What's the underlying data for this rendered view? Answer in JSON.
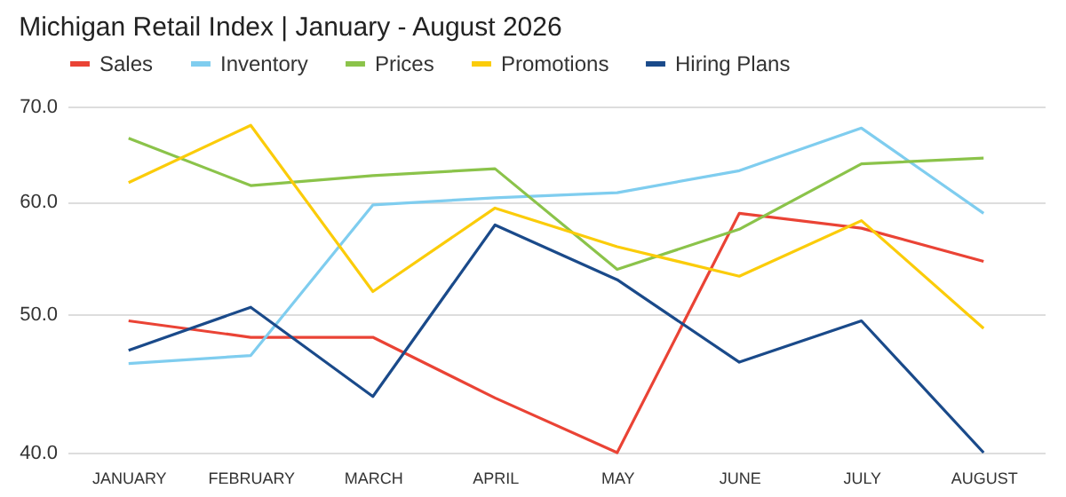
{
  "chart_data": {
    "type": "line",
    "title": "Michigan Retail Index | January - August 2026",
    "categories": [
      "JANUARY",
      "FEBRUARY",
      "MARCH",
      "APRIL",
      "MAY",
      "JUNE",
      "JULY",
      "AUGUST"
    ],
    "series": [
      {
        "name": "Sales",
        "color": "#ea4335",
        "values": [
          49.5,
          48.2,
          48.2,
          43.7,
          40.0,
          58.9,
          57.5,
          54.5
        ]
      },
      {
        "name": "Inventory",
        "color": "#7fcdef",
        "values": [
          46.2,
          46.8,
          59.7,
          60.4,
          60.9,
          63.1,
          67.6,
          58.9
        ]
      },
      {
        "name": "Prices",
        "color": "#8bc34a",
        "values": [
          66.5,
          61.6,
          62.6,
          63.3,
          53.8,
          57.4,
          63.8,
          64.4
        ]
      },
      {
        "name": "Promotions",
        "color": "#fbcc0a",
        "values": [
          61.9,
          67.9,
          51.9,
          59.4,
          55.8,
          53.2,
          58.2,
          48.9
        ]
      },
      {
        "name": "Hiring Plans",
        "color": "#1a4a8a",
        "values": [
          47.2,
          50.6,
          43.8,
          57.8,
          52.9,
          46.3,
          49.5,
          40.0
        ]
      }
    ],
    "ylim": [
      40,
      70
    ],
    "yticks": [
      {
        "value": 40,
        "label": "40.0"
      },
      {
        "value": 50,
        "label": "50.0"
      },
      {
        "value": 60,
        "label": "60.0"
      },
      {
        "value": 70,
        "label": "70.0"
      }
    ],
    "log": true,
    "grid": "y",
    "legend": "top",
    "marker": "none",
    "line_style": "solid"
  }
}
